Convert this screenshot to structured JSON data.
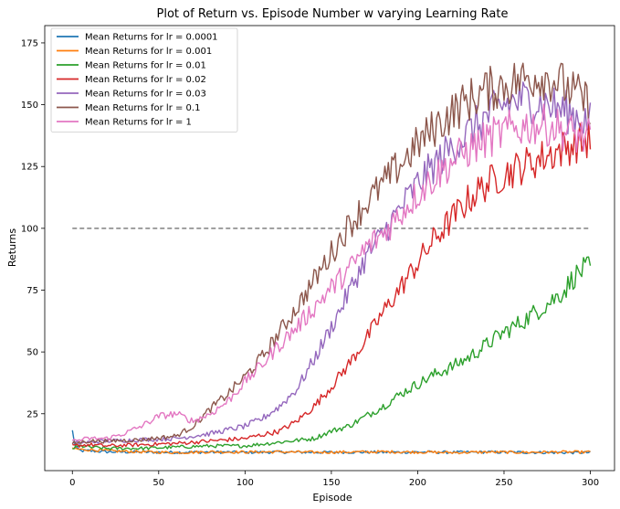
{
  "chart_data": {
    "type": "line",
    "title": "Plot of Return vs. Episode Number w varying Learning Rate",
    "xlabel": "Episode",
    "ylabel": "Returns",
    "xlim": [
      -16,
      314
    ],
    "ylim": [
      2,
      182
    ],
    "xticks": [
      0,
      50,
      100,
      150,
      200,
      250,
      300
    ],
    "yticks": [
      25,
      50,
      75,
      100,
      125,
      150,
      175
    ],
    "legend_location": "upper-left",
    "grid": false,
    "reference_line": {
      "y": 100,
      "x_range": [
        0,
        300
      ],
      "style": "dashed",
      "color": "#808080"
    },
    "series": [
      {
        "name": "Mean Returns for lr = 0.0001",
        "color": "#1f77b4",
        "points": [
          [
            0,
            18
          ],
          [
            2,
            11
          ],
          [
            5,
            10
          ],
          [
            10,
            10
          ],
          [
            20,
            9.6
          ],
          [
            40,
            9.5
          ],
          [
            60,
            9.4
          ],
          [
            80,
            9.5
          ],
          [
            100,
            9.4
          ],
          [
            120,
            9.5
          ],
          [
            140,
            9.4
          ],
          [
            160,
            9.5
          ],
          [
            180,
            9.4
          ],
          [
            200,
            9.5
          ],
          [
            220,
            9.4
          ],
          [
            240,
            9.5
          ],
          [
            260,
            9.4
          ],
          [
            280,
            9.3
          ],
          [
            300,
            9.3
          ]
        ]
      },
      {
        "name": "Mean Returns for lr = 0.001",
        "color": "#ff7f0e",
        "points": [
          [
            0,
            11
          ],
          [
            5,
            10.5
          ],
          [
            10,
            10.5
          ],
          [
            20,
            10
          ],
          [
            40,
            9.6
          ],
          [
            60,
            9.3
          ],
          [
            80,
            9.6
          ],
          [
            100,
            9.5
          ],
          [
            120,
            9.6
          ],
          [
            140,
            9.4
          ],
          [
            160,
            9.5
          ],
          [
            180,
            9.6
          ],
          [
            200,
            9.5
          ],
          [
            220,
            9.3
          ],
          [
            240,
            9.5
          ],
          [
            260,
            9.4
          ],
          [
            280,
            9.5
          ],
          [
            300,
            9.5
          ]
        ]
      },
      {
        "name": "Mean Returns for lr = 0.01",
        "color": "#2ca02c",
        "points": [
          [
            0,
            11
          ],
          [
            5,
            12
          ],
          [
            10,
            11.5
          ],
          [
            20,
            11
          ],
          [
            40,
            11
          ],
          [
            60,
            11.5
          ],
          [
            80,
            12
          ],
          [
            100,
            12
          ],
          [
            120,
            13.5
          ],
          [
            140,
            15
          ],
          [
            150,
            18
          ],
          [
            160,
            20
          ],
          [
            170,
            24
          ],
          [
            180,
            28
          ],
          [
            190,
            33
          ],
          [
            200,
            37
          ],
          [
            210,
            41
          ],
          [
            220,
            44
          ],
          [
            230,
            48
          ],
          [
            240,
            53
          ],
          [
            250,
            58
          ],
          [
            260,
            62
          ],
          [
            270,
            67
          ],
          [
            280,
            72
          ],
          [
            285,
            75
          ],
          [
            290,
            80
          ],
          [
            295,
            83
          ],
          [
            300,
            84
          ]
        ]
      },
      {
        "name": "Mean Returns for lr = 0.02",
        "color": "#d62728",
        "points": [
          [
            0,
            12
          ],
          [
            10,
            12.5
          ],
          [
            20,
            12
          ],
          [
            40,
            12.5
          ],
          [
            60,
            13
          ],
          [
            80,
            14
          ],
          [
            100,
            15
          ],
          [
            120,
            18
          ],
          [
            130,
            22
          ],
          [
            140,
            28
          ],
          [
            150,
            36
          ],
          [
            160,
            45
          ],
          [
            170,
            55
          ],
          [
            180,
            66
          ],
          [
            190,
            76
          ],
          [
            200,
            86
          ],
          [
            210,
            96
          ],
          [
            220,
            104
          ],
          [
            230,
            112
          ],
          [
            240,
            118
          ],
          [
            250,
            122
          ],
          [
            260,
            125
          ],
          [
            270,
            128
          ],
          [
            280,
            131
          ],
          [
            290,
            134
          ],
          [
            300,
            136
          ]
        ]
      },
      {
        "name": "Mean Returns for lr = 0.03",
        "color": "#9467bd",
        "points": [
          [
            0,
            13
          ],
          [
            10,
            13.5
          ],
          [
            20,
            14
          ],
          [
            40,
            14.5
          ],
          [
            60,
            15
          ],
          [
            80,
            17
          ],
          [
            100,
            20
          ],
          [
            110,
            23
          ],
          [
            120,
            28
          ],
          [
            130,
            35
          ],
          [
            140,
            47
          ],
          [
            150,
            60
          ],
          [
            160,
            74
          ],
          [
            170,
            88
          ],
          [
            180,
            98
          ],
          [
            190,
            108
          ],
          [
            200,
            118
          ],
          [
            210,
            126
          ],
          [
            220,
            133
          ],
          [
            230,
            139
          ],
          [
            240,
            145
          ],
          [
            250,
            150
          ],
          [
            260,
            152
          ],
          [
            270,
            151
          ],
          [
            280,
            149
          ],
          [
            290,
            146
          ],
          [
            300,
            143
          ]
        ]
      },
      {
        "name": "Mean Returns for lr = 0.1",
        "color": "#8c564b",
        "points": [
          [
            0,
            13
          ],
          [
            10,
            14
          ],
          [
            20,
            14
          ],
          [
            40,
            14.5
          ],
          [
            60,
            16
          ],
          [
            70,
            20
          ],
          [
            80,
            27
          ],
          [
            90,
            33
          ],
          [
            100,
            40
          ],
          [
            110,
            48
          ],
          [
            120,
            58
          ],
          [
            130,
            68
          ],
          [
            140,
            79
          ],
          [
            150,
            90
          ],
          [
            160,
            101
          ],
          [
            170,
            110
          ],
          [
            180,
            118
          ],
          [
            190,
            126
          ],
          [
            200,
            134
          ],
          [
            210,
            141
          ],
          [
            220,
            147
          ],
          [
            230,
            152
          ],
          [
            240,
            156
          ],
          [
            250,
            158
          ],
          [
            260,
            160
          ],
          [
            270,
            162
          ],
          [
            280,
            160
          ],
          [
            290,
            155
          ],
          [
            300,
            150
          ]
        ]
      },
      {
        "name": "Mean Returns for lr = 1",
        "color": "#e377c2",
        "points": [
          [
            0,
            14
          ],
          [
            10,
            15
          ],
          [
            20,
            15
          ],
          [
            30,
            17
          ],
          [
            40,
            20
          ],
          [
            50,
            24
          ],
          [
            60,
            25
          ],
          [
            70,
            22
          ],
          [
            80,
            25
          ],
          [
            90,
            30
          ],
          [
            100,
            38
          ],
          [
            110,
            45
          ],
          [
            120,
            53
          ],
          [
            130,
            60
          ],
          [
            140,
            68
          ],
          [
            150,
            76
          ],
          [
            160,
            83
          ],
          [
            170,
            92
          ],
          [
            180,
            98
          ],
          [
            190,
            106
          ],
          [
            200,
            114
          ],
          [
            210,
            121
          ],
          [
            220,
            127
          ],
          [
            230,
            132
          ],
          [
            240,
            136
          ],
          [
            250,
            139
          ],
          [
            260,
            141
          ],
          [
            270,
            142
          ],
          [
            280,
            141
          ],
          [
            290,
            138
          ],
          [
            300,
            136
          ]
        ]
      }
    ]
  }
}
